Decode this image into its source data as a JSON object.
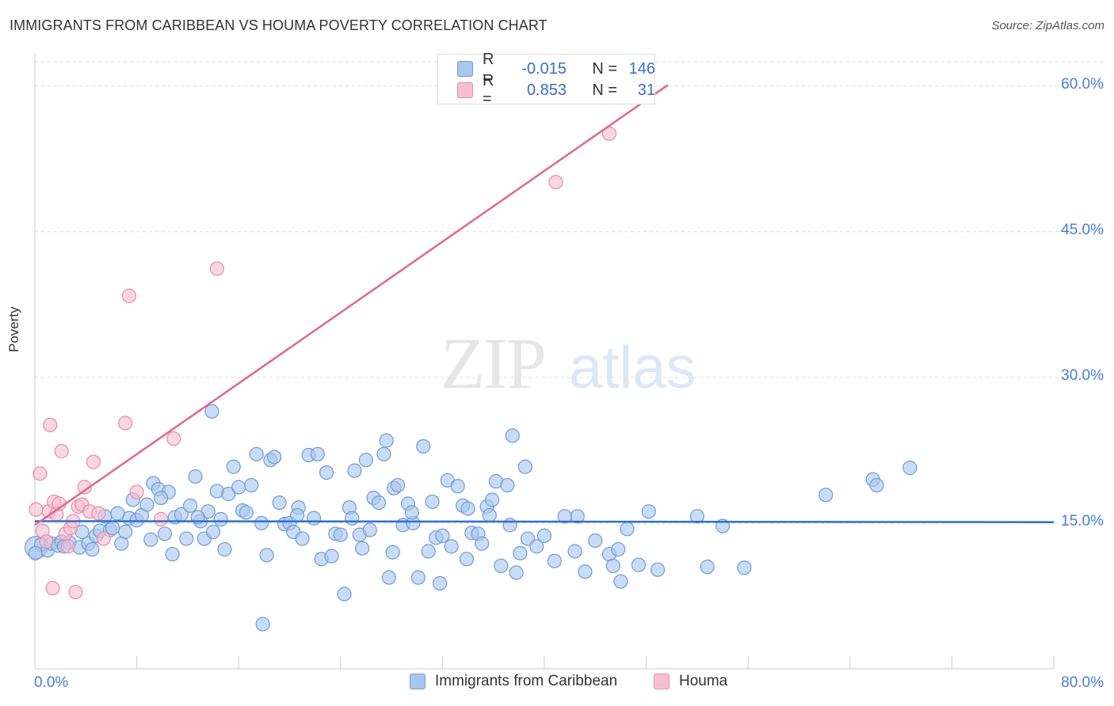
{
  "title": "IMMIGRANTS FROM CARIBBEAN VS HOUMA POVERTY CORRELATION CHART",
  "source": "Source: ZipAtlas.com",
  "watermark": {
    "zip": "ZIP",
    "atlas": "atlas"
  },
  "colors": {
    "blue_fill": "#a9c6ef",
    "blue_stroke": "#6f9bd8",
    "blue_line": "#2f6fcf",
    "pink_fill": "#f6bfd1",
    "pink_stroke": "#e88aa8",
    "pink_line": "#e06790",
    "tick_text": "#4a7fd0",
    "grid": "#dddddd"
  },
  "legend": {
    "rows": [
      {
        "r_label": "R =",
        "r_value": "-0.015",
        "n_label": "N =",
        "n_value": "146"
      },
      {
        "r_label": "R =",
        "r_value": "0.853",
        "n_label": "N =",
        "n_value": "31"
      }
    ]
  },
  "chart_data": {
    "type": "scatter",
    "title": "IMMIGRANTS FROM CARIBBEAN VS HOUMA POVERTY CORRELATION CHART",
    "xlabel": "",
    "ylabel": "Poverty",
    "xlim": [
      0,
      80
    ],
    "ylim": [
      0,
      62.5
    ],
    "x_tick_labels": [
      "0.0%",
      "80.0%"
    ],
    "y_ticks": [
      15,
      30,
      45,
      60
    ],
    "y_tick_labels": [
      "15.0%",
      "30.0%",
      "45.0%",
      "60.0%"
    ],
    "grid": true,
    "legend_placement": "top-center",
    "series": [
      {
        "name": "Immigrants from Caribbean",
        "color": "#a9c6ef",
        "trend": {
          "x": [
            0,
            80
          ],
          "y": [
            15.2,
            15.1
          ]
        },
        "points": [
          [
            0.1,
            12.5
          ],
          [
            0.5,
            12.8
          ],
          [
            1.0,
            12.2
          ],
          [
            1.3,
            12.9
          ],
          [
            1.8,
            12.7
          ],
          [
            2.1,
            13.1
          ],
          [
            2.7,
            13.0
          ],
          [
            3.5,
            12.5
          ],
          [
            3.7,
            14.1
          ],
          [
            4.2,
            12.9
          ],
          [
            4.5,
            12.3
          ],
          [
            4.8,
            13.7
          ],
          [
            5.1,
            14.2
          ],
          [
            5.5,
            15.7
          ],
          [
            5.9,
            14.3
          ],
          [
            6.1,
            14.5
          ],
          [
            6.8,
            12.9
          ],
          [
            7.1,
            14.1
          ],
          [
            7.4,
            15.5
          ],
          [
            7.7,
            17.4
          ],
          [
            8.0,
            15.3
          ],
          [
            8.4,
            15.8
          ],
          [
            8.8,
            16.9
          ],
          [
            9.1,
            13.3
          ],
          [
            9.3,
            19.1
          ],
          [
            9.7,
            18.5
          ],
          [
            10.2,
            13.9
          ],
          [
            10.5,
            18.2
          ],
          [
            11.0,
            15.6
          ],
          [
            11.5,
            15.9
          ],
          [
            11.9,
            13.4
          ],
          [
            12.2,
            16.8
          ],
          [
            12.6,
            19.8
          ],
          [
            13.0,
            15.2
          ],
          [
            13.3,
            13.4
          ],
          [
            13.6,
            16.2
          ],
          [
            14.0,
            14.1
          ],
          [
            14.3,
            18.3
          ],
          [
            14.6,
            15.4
          ],
          [
            14.9,
            12.3
          ],
          [
            15.2,
            18.0
          ],
          [
            15.6,
            20.8
          ],
          [
            16.0,
            18.7
          ],
          [
            16.3,
            16.3
          ],
          [
            16.6,
            16.1
          ],
          [
            17.0,
            18.9
          ],
          [
            17.4,
            22.1
          ],
          [
            17.8,
            15.0
          ],
          [
            18.2,
            11.7
          ],
          [
            18.5,
            21.5
          ],
          [
            18.8,
            21.8
          ],
          [
            19.2,
            17.1
          ],
          [
            19.6,
            14.9
          ],
          [
            20.0,
            15.0
          ],
          [
            20.3,
            14.1
          ],
          [
            20.7,
            16.6
          ],
          [
            21.0,
            13.4
          ],
          [
            21.5,
            22.0
          ],
          [
            21.9,
            15.5
          ],
          [
            22.2,
            22.1
          ],
          [
            22.5,
            11.3
          ],
          [
            22.9,
            20.2
          ],
          [
            23.3,
            11.6
          ],
          [
            23.6,
            13.9
          ],
          [
            24.0,
            13.8
          ],
          [
            24.3,
            7.7
          ],
          [
            24.7,
            16.6
          ],
          [
            25.1,
            20.4
          ],
          [
            25.5,
            13.8
          ],
          [
            25.7,
            12.4
          ],
          [
            26.0,
            21.5
          ],
          [
            26.3,
            14.3
          ],
          [
            26.6,
            17.6
          ],
          [
            27.0,
            17.1
          ],
          [
            27.4,
            22.1
          ],
          [
            27.6,
            23.5
          ],
          [
            27.8,
            9.4
          ],
          [
            28.2,
            18.6
          ],
          [
            28.5,
            18.9
          ],
          [
            28.9,
            14.8
          ],
          [
            29.3,
            17.0
          ],
          [
            29.7,
            15.0
          ],
          [
            30.1,
            9.4
          ],
          [
            30.5,
            22.9
          ],
          [
            30.9,
            12.1
          ],
          [
            31.2,
            17.2
          ],
          [
            31.5,
            13.5
          ],
          [
            32.0,
            13.7
          ],
          [
            32.4,
            19.4
          ],
          [
            32.7,
            12.6
          ],
          [
            33.2,
            18.8
          ],
          [
            33.6,
            16.8
          ],
          [
            34.0,
            16.5
          ],
          [
            34.3,
            14.0
          ],
          [
            34.8,
            13.9
          ],
          [
            35.1,
            12.9
          ],
          [
            35.5,
            16.7
          ],
          [
            35.9,
            17.4
          ],
          [
            36.2,
            19.3
          ],
          [
            36.6,
            10.6
          ],
          [
            37.1,
            18.9
          ],
          [
            37.5,
            24.0
          ],
          [
            37.8,
            9.9
          ],
          [
            38.1,
            11.9
          ],
          [
            38.5,
            20.8
          ],
          [
            38.7,
            13.4
          ],
          [
            39.4,
            12.6
          ],
          [
            40.0,
            13.7
          ],
          [
            40.8,
            11.1
          ],
          [
            42.4,
            12.1
          ],
          [
            42.6,
            15.7
          ],
          [
            43.2,
            10.0
          ],
          [
            44.0,
            13.2
          ],
          [
            45.1,
            11.8
          ],
          [
            45.4,
            10.6
          ],
          [
            45.8,
            12.3
          ],
          [
            46.0,
            9.0
          ],
          [
            47.4,
            10.7
          ],
          [
            48.2,
            16.2
          ],
          [
            48.9,
            10.2
          ],
          [
            52.0,
            15.7
          ],
          [
            52.8,
            10.5
          ],
          [
            54.0,
            14.7
          ],
          [
            55.7,
            10.4
          ],
          [
            62.1,
            17.9
          ],
          [
            65.8,
            19.5
          ],
          [
            66.1,
            18.9
          ],
          [
            68.7,
            20.7
          ],
          [
            0.05,
            11.9
          ],
          [
            2.3,
            12.6
          ],
          [
            6.5,
            16.0
          ],
          [
            9.9,
            17.6
          ],
          [
            13.9,
            26.5
          ],
          [
            20.6,
            15.8
          ],
          [
            28.1,
            12.0
          ],
          [
            31.8,
            8.8
          ],
          [
            35.7,
            15.8
          ],
          [
            41.6,
            15.7
          ],
          [
            10.8,
            11.8
          ],
          [
            17.9,
            4.6
          ],
          [
            24.9,
            15.5
          ],
          [
            37.3,
            14.8
          ],
          [
            46.5,
            14.4
          ],
          [
            33.9,
            11.3
          ],
          [
            12.8,
            15.6
          ],
          [
            29.6,
            16.1
          ]
        ]
      },
      {
        "name": "Houma",
        "color": "#f6bfd1",
        "trend": {
          "x": [
            0,
            49.7
          ],
          "y": [
            14.8,
            60.1
          ]
        },
        "points": [
          [
            0.1,
            16.4
          ],
          [
            0.4,
            20.1
          ],
          [
            0.6,
            14.2
          ],
          [
            0.9,
            13.1
          ],
          [
            1.1,
            16.2
          ],
          [
            1.2,
            25.1
          ],
          [
            1.4,
            8.3
          ],
          [
            1.5,
            17.2
          ],
          [
            1.7,
            15.9
          ],
          [
            1.9,
            17.0
          ],
          [
            2.1,
            22.4
          ],
          [
            2.4,
            13.9
          ],
          [
            2.6,
            12.6
          ],
          [
            2.8,
            14.5
          ],
          [
            3.0,
            15.2
          ],
          [
            3.2,
            7.9
          ],
          [
            3.4,
            16.7
          ],
          [
            3.7,
            16.9
          ],
          [
            3.9,
            18.7
          ],
          [
            4.3,
            16.2
          ],
          [
            4.6,
            21.3
          ],
          [
            5.0,
            16.0
          ],
          [
            5.4,
            13.4
          ],
          [
            7.1,
            25.3
          ],
          [
            7.4,
            38.4
          ],
          [
            8.0,
            18.2
          ],
          [
            9.9,
            15.4
          ],
          [
            10.9,
            23.7
          ],
          [
            14.3,
            41.2
          ],
          [
            40.9,
            50.1
          ],
          [
            45.1,
            55.1
          ]
        ]
      }
    ]
  }
}
